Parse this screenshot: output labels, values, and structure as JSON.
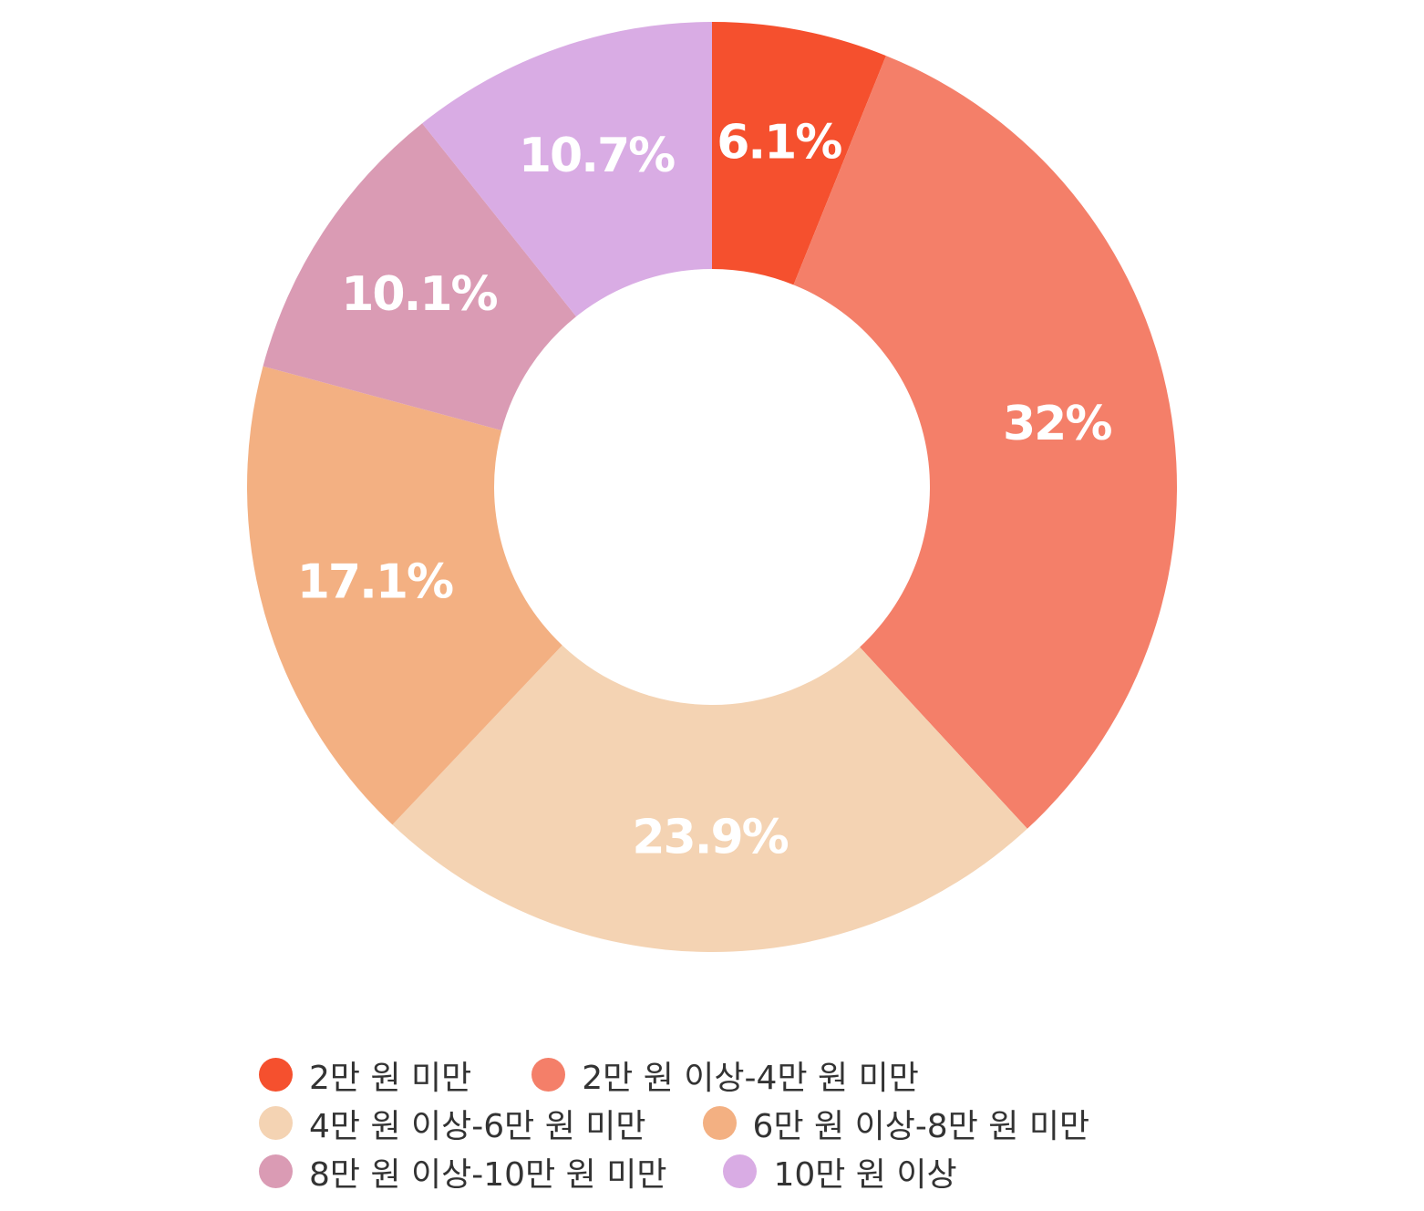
{
  "chart_data": {
    "type": "pie",
    "donut": true,
    "title": "",
    "series": [
      {
        "name": "2만 원 미만",
        "value": 6.1,
        "label": "6.1%",
        "color": "#F5502E"
      },
      {
        "name": "2만 원 이상-4만 원 미만",
        "value": 32,
        "label": "32%",
        "color": "#F47F69"
      },
      {
        "name": "4만 원 이상-6만 원 미만",
        "value": 23.9,
        "label": "23.9%",
        "color": "#F4D3B3"
      },
      {
        "name": "6만 원 이상-8만 원 미만",
        "value": 17.1,
        "label": "17.1%",
        "color": "#F3B082"
      },
      {
        "name": "8만 원 이상-10만 원 미만",
        "value": 10.1,
        "label": "10.1%",
        "color": "#DA9BB4"
      },
      {
        "name": "10만 원 이상",
        "value": 10.7,
        "label": "10.7%",
        "color": "#D9ACE4"
      }
    ],
    "legend_placement": "bottom"
  }
}
